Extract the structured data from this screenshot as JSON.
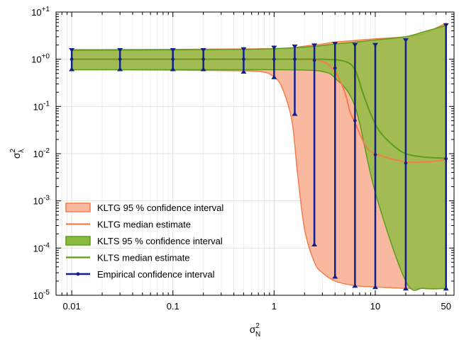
{
  "chart_data": {
    "type": "line",
    "x_scale": "log",
    "y_scale": "log",
    "xlim": [
      0.007,
      60
    ],
    "ylim": [
      1e-05,
      10
    ],
    "grid": true,
    "legend_placement": "bottom-left",
    "xlabel": {
      "base": "σ",
      "sup": "2",
      "sub": "N"
    },
    "ylabel": {
      "base": "σ",
      "sup": "2",
      "sub": "λ"
    },
    "x_ticks": [
      {
        "value": 0.01,
        "label": "0.01"
      },
      {
        "value": 0.1,
        "label": "0.1"
      },
      {
        "value": 1,
        "label": "1"
      },
      {
        "value": 10,
        "label": "10"
      },
      {
        "value": 50,
        "label": "50"
      }
    ],
    "y_ticks": [
      {
        "value": 10,
        "base": "10",
        "exp": "+1"
      },
      {
        "value": 1,
        "base": "10",
        "exp": "+0"
      },
      {
        "value": 0.1,
        "base": "10",
        "exp": "-1"
      },
      {
        "value": 0.01,
        "base": "10",
        "exp": "-2"
      },
      {
        "value": 0.001,
        "base": "10",
        "exp": "-3"
      },
      {
        "value": 0.0001,
        "base": "10",
        "exp": "-4"
      },
      {
        "value": 1e-05,
        "base": "10",
        "exp": "-5"
      }
    ],
    "series": [
      {
        "name": "KLTG 95 % confidence interval",
        "kind": "band",
        "color": "#f47d4a",
        "fill": "#f9b9a0",
        "x": [
          0.01,
          0.1,
          0.5,
          0.8,
          1.0,
          1.2,
          1.5,
          1.7,
          2.0,
          2.5,
          3.0,
          4.0,
          6.3,
          10,
          20,
          30,
          50
        ],
        "upper": [
          1.6,
          1.62,
          1.65,
          1.67,
          1.68,
          1.7,
          1.75,
          1.8,
          1.9,
          2.0,
          2.1,
          2.3,
          2.5,
          2.7,
          3.0,
          3.5,
          5.8
        ],
        "lower": [
          0.6,
          0.59,
          0.57,
          0.53,
          0.42,
          0.25,
          0.05,
          0.004,
          0.00025,
          5e-05,
          3e-05,
          2e-05,
          1.6e-05,
          1.5e-05,
          1.4e-05,
          1.4e-05,
          1.4e-05
        ]
      },
      {
        "name": "KLTG median estimate",
        "kind": "line",
        "color": "#f47d4a",
        "x": [
          0.01,
          0.5,
          1.0,
          2.0,
          3.0,
          4.0,
          5.0,
          5.6,
          6.3,
          8.0,
          10,
          20,
          35,
          50
        ],
        "values": [
          1.0,
          1.0,
          1.0,
          0.99,
          0.9,
          0.55,
          0.2,
          0.08,
          0.045,
          0.015,
          0.01,
          0.0067,
          0.0068,
          0.0075
        ]
      },
      {
        "name": "KLTS 95 % confidence interval",
        "kind": "band",
        "color": "#5a9e1b",
        "fill": "#8bbb3e",
        "x": [
          0.01,
          0.1,
          0.5,
          1.0,
          2.0,
          3.0,
          4.0,
          6.3,
          10,
          20,
          30,
          50
        ],
        "upper": [
          1.55,
          1.58,
          1.62,
          1.67,
          1.8,
          1.95,
          2.1,
          2.3,
          2.55,
          3.0,
          3.8,
          5.2
        ],
        "lower": [
          0.6,
          0.6,
          0.6,
          0.6,
          0.59,
          0.55,
          0.4,
          0.1,
          0.0015,
          2e-05,
          1.4e-05,
          1.4e-05
        ]
      },
      {
        "name": "KLTS median estimate",
        "kind": "line",
        "color": "#5a9e1b",
        "x": [
          0.01,
          1.0,
          3.0,
          5.0,
          6.3,
          7.5,
          9.0,
          11,
          15,
          20,
          30,
          50
        ],
        "values": [
          1.0,
          1.0,
          1.0,
          0.9,
          0.6,
          0.2,
          0.07,
          0.03,
          0.015,
          0.01,
          0.0085,
          0.008
        ]
      },
      {
        "name": "Empirical confidence interval",
        "kind": "errorbar",
        "color": "#0f1f8c",
        "points": [
          {
            "x": 0.01,
            "lo": 0.62,
            "mid": 1.0,
            "hi": 1.55
          },
          {
            "x": 0.03,
            "lo": 0.62,
            "mid": 1.0,
            "hi": 1.55
          },
          {
            "x": 0.1,
            "lo": 0.62,
            "mid": 1.0,
            "hi": 1.55
          },
          {
            "x": 0.2,
            "lo": 0.62,
            "mid": 1.0,
            "hi": 1.55
          },
          {
            "x": 0.5,
            "lo": 0.55,
            "mid": 1.0,
            "hi": 1.62
          },
          {
            "x": 1.0,
            "lo": 0.42,
            "mid": 1.0,
            "hi": 1.75
          },
          {
            "x": 1.6,
            "lo": 0.07,
            "mid": 1.0,
            "hi": 1.85
          },
          {
            "x": 2.5,
            "lo": 0.00012,
            "mid": 0.95,
            "hi": 1.95
          },
          {
            "x": 4.0,
            "lo": 2.5e-05,
            "mid": 0.65,
            "hi": 2.1
          },
          {
            "x": 6.3,
            "lo": 1.6e-05,
            "mid": 0.05,
            "hi": 2.0
          },
          {
            "x": 10,
            "lo": 1.5e-05,
            "mid": 0.0095,
            "hi": 2.0
          },
          {
            "x": 20,
            "lo": 1.4e-05,
            "mid": 0.0063,
            "hi": 2.5
          },
          {
            "x": 50,
            "lo": 1.4e-05,
            "mid": 0.0078,
            "hi": 5.2
          }
        ]
      }
    ]
  }
}
